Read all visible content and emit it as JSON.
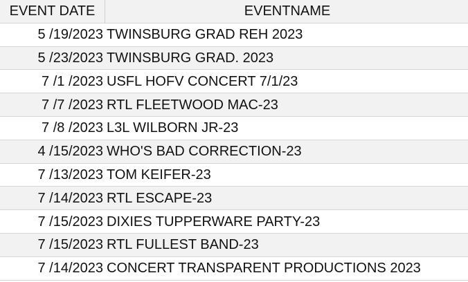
{
  "table": {
    "headers": [
      "EVENT DATE",
      "EVENTNAME"
    ],
    "rows": [
      [
        "5 /19/2023",
        "TWINSBURG GRAD REH 2023"
      ],
      [
        "5 /23/2023",
        "TWINSBURG GRAD.  2023"
      ],
      [
        "7 /1 /2023",
        "USFL HOFV CONCERT 7/1/23"
      ],
      [
        "7 /7 /2023",
        "RTL FLEETWOOD MAC-23"
      ],
      [
        "7 /8 /2023",
        "L3L WILBORN JR-23"
      ],
      [
        "4 /15/2023",
        "WHO'S BAD CORRECTION-23"
      ],
      [
        "7 /13/2023",
        "TOM KEIFER-23"
      ],
      [
        "7 /14/2023",
        "RTL ESCAPE-23"
      ],
      [
        "7 /15/2023",
        "DIXIES TUPPERWARE PARTY-23"
      ],
      [
        "7 /15/2023",
        "RTL FULLEST BAND-23"
      ],
      [
        "7 /14/2023",
        "CONCERT TRANSPARENT PRODUCTIONS 2023"
      ]
    ]
  }
}
